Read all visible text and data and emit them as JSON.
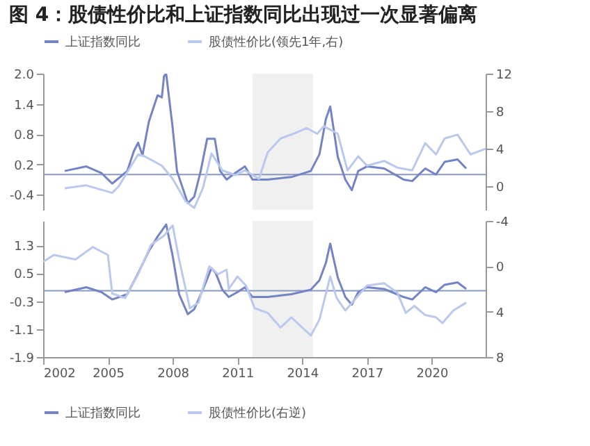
{
  "chart_data": [
    {
      "type": "line",
      "title": "图 4：股债性价比和上证指数同比出现过一次显著偏离",
      "xlim": [
        2002,
        2022.5
      ],
      "xticks": [
        2002,
        2005,
        2008,
        2011,
        2014,
        2017,
        2020
      ],
      "ylim": [
        -0.7,
        2.0
      ],
      "yticks": [
        -0.4,
        0.2,
        0.8,
        1.4,
        {
          "value": 2.0,
          "label": "2.0"
        }
      ],
      "y2lim": [
        -2.5,
        12
      ],
      "y2ticks": [
        0,
        4,
        8,
        12
      ],
      "legend": "top",
      "tick_labels": "y",
      "ref_lines": [
        {
          "axis": "y",
          "value": 0
        }
      ],
      "bands": [
        {
          "axis": "x",
          "from": 2011.7,
          "to": 2014.5,
          "color": "#f0f0f0"
        }
      ],
      "series": [
        {
          "name": "上证指数同比",
          "color": "#7383c4",
          "x": [
            2003.0,
            2004.0,
            2004.7,
            2005.2,
            2005.9,
            2006.2,
            2006.4,
            2006.6,
            2006.9,
            2007.3,
            2007.5,
            2007.6,
            2007.7,
            2008.0,
            2008.2,
            2008.7,
            2009.0,
            2009.3,
            2009.6,
            2009.95,
            2010.2,
            2010.5,
            2010.9,
            2011.35,
            2011.7,
            2012.4,
            2013.5,
            2014.4,
            2014.8,
            2015.1,
            2015.3,
            2015.65,
            2016.0,
            2016.3,
            2016.6,
            2017.0,
            2017.8,
            2018.7,
            2019.1,
            2019.7,
            2020.2,
            2020.6,
            2021.2,
            2021.6
          ],
          "values": [
            0.07,
            0.16,
            0.03,
            -0.18,
            0.07,
            0.46,
            0.63,
            0.38,
            1.05,
            1.57,
            1.53,
            1.95,
            2.0,
            0.93,
            0.07,
            -0.57,
            -0.44,
            0.07,
            0.71,
            0.71,
            0.07,
            -0.1,
            0.03,
            0.16,
            -0.1,
            -0.1,
            -0.05,
            0.07,
            0.4,
            1.1,
            1.35,
            0.35,
            -0.1,
            -0.31,
            0.07,
            0.16,
            0.12,
            -0.1,
            -0.13,
            0.12,
            0.0,
            0.25,
            0.3,
            0.12
          ]
        },
        {
          "name": "股债性价比(领先1年,右)",
          "color": "#b9c8ec",
          "axis": "y2",
          "x": [
            2003.0,
            2004.0,
            2005.2,
            2005.5,
            2006.4,
            2006.7,
            2007.5,
            2008.0,
            2008.6,
            2009.0,
            2009.4,
            2009.8,
            2010.3,
            2010.9,
            2011.35,
            2012.0,
            2012.4,
            2013.0,
            2013.6,
            2014.2,
            2014.7,
            2015.0,
            2015.65,
            2016.1,
            2016.6,
            2017.0,
            2017.8,
            2018.4,
            2019.1,
            2019.7,
            2020.2,
            2020.6,
            2021.2,
            2021.8,
            2022.5
          ],
          "values": [
            -0.2,
            0.1,
            -0.7,
            0.0,
            3.4,
            3.2,
            2.2,
            0.8,
            -1.6,
            -2.3,
            -0.2,
            3.5,
            1.7,
            1.2,
            1.7,
            0.8,
            3.6,
            5.1,
            5.6,
            6.2,
            5.6,
            6.4,
            5.6,
            1.7,
            3.2,
            2.2,
            2.7,
            2.0,
            1.7,
            4.6,
            3.4,
            5.1,
            5.5,
            3.4,
            4.0
          ]
        }
      ]
    },
    {
      "type": "line",
      "xlim": [
        2002,
        2022.5
      ],
      "xticks": [
        2002,
        2005,
        2008,
        2011,
        2014,
        2017,
        2020
      ],
      "ylim": [
        -1.9,
        2.0
      ],
      "yticks": [
        -1.9,
        -1.1,
        -0.3,
        0.5,
        1.3
      ],
      "y2lim": [
        8,
        -4
      ],
      "y2ticks": [
        -4,
        0,
        4,
        8
      ],
      "legend": "bottom",
      "ref_lines": [
        {
          "axis": "y",
          "value": 0
        }
      ],
      "bands": [
        {
          "axis": "x",
          "from": 2011.7,
          "to": 2014.5,
          "color": "#f0f0f0"
        }
      ],
      "series": [
        {
          "name": "上证指数同比",
          "color": "#7383c4",
          "x": [
            2003.0,
            2004.0,
            2004.7,
            2005.2,
            2005.9,
            2006.4,
            2006.9,
            2007.3,
            2007.7,
            2008.0,
            2008.3,
            2008.7,
            2009.0,
            2009.4,
            2009.8,
            2010.0,
            2010.3,
            2010.6,
            2011.0,
            2011.35,
            2011.7,
            2012.4,
            2013.5,
            2014.4,
            2014.8,
            2015.1,
            2015.3,
            2015.65,
            2016.0,
            2016.3,
            2016.6,
            2017.0,
            2017.8,
            2018.7,
            2019.1,
            2019.7,
            2020.2,
            2020.6,
            2021.2,
            2021.6
          ],
          "values": [
            -0.04,
            0.1,
            -0.04,
            -0.25,
            -0.1,
            0.5,
            1.14,
            1.55,
            1.9,
            1.0,
            -0.1,
            -0.67,
            -0.53,
            0.03,
            0.65,
            0.5,
            0.03,
            -0.18,
            -0.04,
            0.1,
            -0.18,
            -0.18,
            -0.1,
            0.03,
            0.3,
            0.8,
            1.35,
            0.38,
            -0.18,
            -0.4,
            -0.04,
            0.1,
            0.05,
            -0.18,
            -0.25,
            0.1,
            -0.04,
            0.17,
            0.24,
            0.05
          ]
        },
        {
          "name": "股债性价比(右逆)",
          "color": "#b9c8ec",
          "axis": "y2",
          "x": [
            2002.0,
            2002.5,
            2003.5,
            2004.3,
            2005.0,
            2005.2,
            2005.8,
            2006.4,
            2007.0,
            2007.6,
            2008.0,
            2008.3,
            2008.8,
            2009.2,
            2009.7,
            2010.1,
            2010.5,
            2010.6,
            2011.0,
            2011.4,
            2011.8,
            2012.4,
            2013.0,
            2013.5,
            2014.0,
            2014.4,
            2014.8,
            2015.3,
            2015.6,
            2016.0,
            2016.5,
            2017.0,
            2017.8,
            2018.4,
            2018.8,
            2019.2,
            2019.7,
            2020.2,
            2020.5,
            2021.0,
            2021.6
          ],
          "values": [
            -0.4,
            -1.0,
            -0.6,
            -1.7,
            -1.0,
            2.4,
            2.8,
            0.7,
            -1.9,
            -2.7,
            -3.6,
            -0.6,
            3.7,
            3.2,
            0.0,
            0.7,
            0.3,
            2.0,
            0.9,
            1.7,
            3.7,
            4.1,
            5.4,
            4.5,
            5.4,
            6.1,
            4.7,
            0.9,
            2.8,
            3.9,
            2.8,
            1.7,
            1.5,
            2.3,
            4.1,
            3.5,
            4.3,
            4.5,
            5.0,
            3.9,
            3.2
          ]
        }
      ]
    }
  ]
}
